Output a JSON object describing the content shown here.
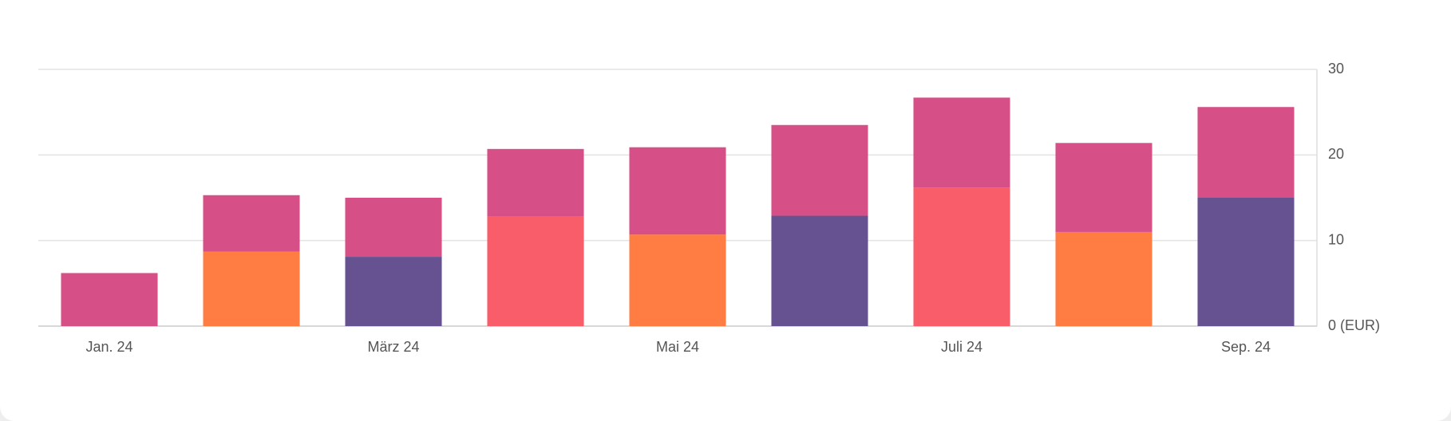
{
  "chart_data": {
    "type": "stacked_bar",
    "categories": [
      "Jan. 24",
      null,
      "März 24",
      null,
      "Mai 24",
      null,
      "Juli 24",
      null,
      "Sep. 24"
    ],
    "series": [
      {
        "color": "#f95d6a",
        "values": [
          null,
          null,
          null,
          12.8,
          null,
          null,
          16.2,
          null,
          null
        ]
      },
      {
        "color": "#ff7c43",
        "values": [
          null,
          8.7,
          null,
          null,
          10.7,
          null,
          null,
          11.0,
          null
        ]
      },
      {
        "color": "#665191",
        "values": [
          null,
          null,
          8.1,
          null,
          null,
          12.9,
          null,
          null,
          15.0
        ]
      },
      {
        "color": "#d64f86",
        "values": [
          6.2,
          6.6,
          6.9,
          7.9,
          10.2,
          10.6,
          10.5,
          10.4,
          10.6
        ]
      }
    ],
    "ylim": [
      0,
      30
    ],
    "yticks": [
      {
        "value": 0,
        "label": "0 (EUR)"
      },
      10,
      20,
      30
    ],
    "grid": true
  }
}
